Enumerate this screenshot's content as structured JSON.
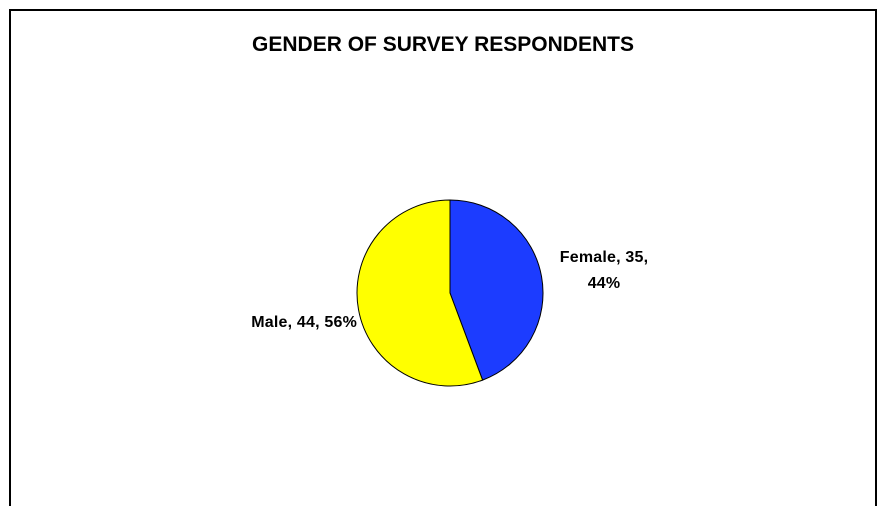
{
  "chart_data": {
    "type": "pie",
    "title": "GENDER OF SURVEY RESPONDENTS",
    "slices": [
      {
        "category": "Female",
        "value": 35,
        "percent": "44%",
        "label_line1": "Female, 35,",
        "label_line2": "44%",
        "color": "#1c3cff"
      },
      {
        "category": "Male",
        "value": 44,
        "percent": "56%",
        "label_line1": "Male, 44, 56%",
        "label_line2": "",
        "color": "#ffff00"
      }
    ],
    "start_angle_deg": 0,
    "direction": "clockwise",
    "legend": "none"
  }
}
